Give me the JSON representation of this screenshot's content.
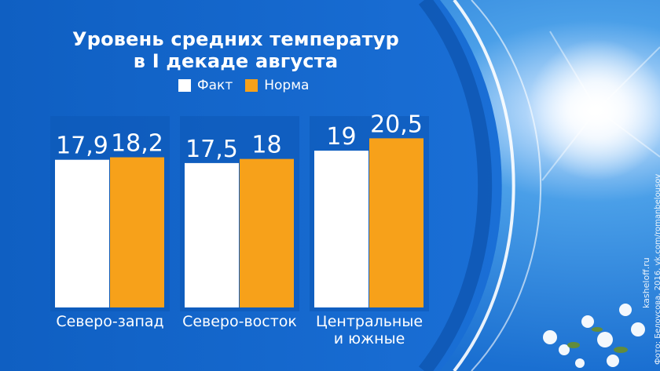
{
  "title_line1": "Уровень средних температур",
  "title_line2": "в I декаде августа",
  "watermark_site": "kasheloff.ru",
  "watermark_credit": "Фото: Белоусова, 2016, vk.com/romanbelousov",
  "colors": {
    "panel_blue": "#1466c9",
    "panel_edge": "#0a4fae",
    "fact": "#ffffff",
    "norm": "#f7a11a",
    "group_bg": "#0d58b8"
  },
  "chart_data": {
    "type": "bar",
    "categories": [
      [
        "Северо-запад"
      ],
      [
        "Северо-восток"
      ],
      [
        "Центральные",
        "и южные"
      ]
    ],
    "series": [
      {
        "name": "Факт",
        "values": [
          17.9,
          17.5,
          19
        ],
        "labels": [
          "17,9",
          "17,5",
          "19"
        ],
        "color": "#ffffff"
      },
      {
        "name": "Норма",
        "values": [
          18.2,
          18,
          20.5
        ],
        "labels": [
          "18,2",
          "18",
          "20,5"
        ],
        "color": "#f7a11a"
      }
    ],
    "legend_position": "top-center",
    "grid": false
  }
}
